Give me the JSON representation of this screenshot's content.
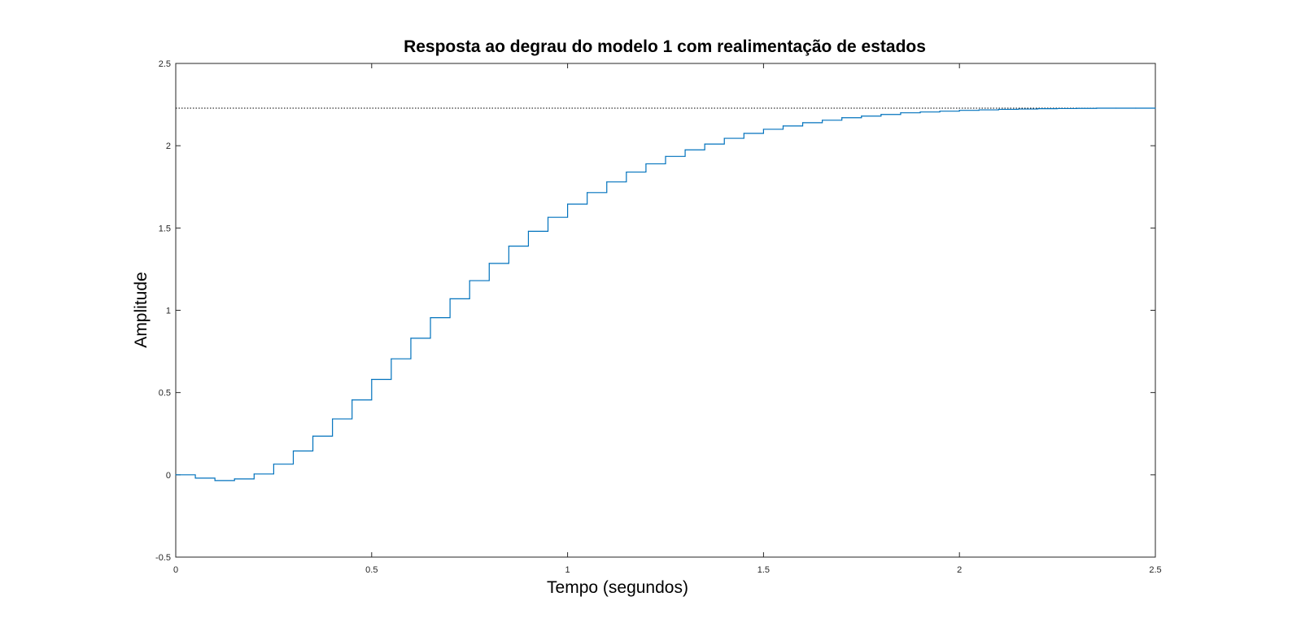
{
  "chart_data": {
    "type": "line",
    "title": "Resposta ao degrau do modelo 1 com realimentação de estados",
    "xlabel": "Tempo (segundos)",
    "ylabel": "Amplitude",
    "xlim": [
      0,
      2.5
    ],
    "ylim": [
      -0.5,
      2.5
    ],
    "xticks": [
      0,
      0.5,
      1,
      1.5,
      2,
      2.5
    ],
    "xtick_labels": [
      "0",
      "0.5",
      "1",
      "1.5",
      "2",
      "2.5"
    ],
    "yticks": [
      -0.5,
      0,
      0.5,
      1,
      1.5,
      2,
      2.5
    ],
    "ytick_labels": [
      "-0.5",
      "0",
      "0.5",
      "1",
      "1.5",
      "2",
      "2.5"
    ],
    "grid": false,
    "step": true,
    "series": [
      {
        "color": "#0072bd",
        "x": [
          0,
          0.05,
          0.1,
          0.15,
          0.2,
          0.25,
          0.3,
          0.35,
          0.4,
          0.45,
          0.5,
          0.55,
          0.6,
          0.65,
          0.7,
          0.75,
          0.8,
          0.85,
          0.9,
          0.95,
          1.0,
          1.05,
          1.1,
          1.15,
          1.2,
          1.25,
          1.3,
          1.35,
          1.4,
          1.45,
          1.5,
          1.55,
          1.6,
          1.65,
          1.7,
          1.75,
          1.8,
          1.85,
          1.9,
          1.95,
          2.0,
          2.05,
          2.1,
          2.15,
          2.2,
          2.25,
          2.3,
          2.35,
          2.4,
          2.45,
          2.5
        ],
        "y": [
          0.0,
          -0.02,
          -0.035,
          -0.025,
          0.005,
          0.065,
          0.145,
          0.235,
          0.34,
          0.455,
          0.58,
          0.705,
          0.83,
          0.955,
          1.07,
          1.18,
          1.285,
          1.39,
          1.48,
          1.565,
          1.645,
          1.715,
          1.78,
          1.84,
          1.89,
          1.935,
          1.975,
          2.01,
          2.045,
          2.075,
          2.1,
          2.12,
          2.14,
          2.155,
          2.17,
          2.18,
          2.19,
          2.2,
          2.205,
          2.21,
          2.215,
          2.218,
          2.221,
          2.223,
          2.225,
          2.226,
          2.227,
          2.228,
          2.228,
          2.228,
          2.228
        ]
      }
    ],
    "steady_state": {
      "value": 2.228,
      "style": "dotted",
      "color": "#000000"
    },
    "axes_color": "#262626",
    "curve_color": "#0072bd"
  }
}
